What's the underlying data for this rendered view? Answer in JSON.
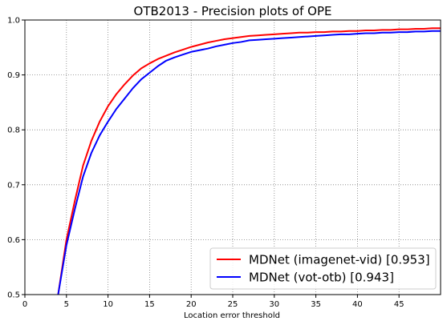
{
  "chart_data": {
    "type": "line",
    "title": "OTB2013 - Precision plots of OPE",
    "xlabel": "Location error threshold",
    "ylabel": "",
    "xlim": [
      0,
      50
    ],
    "ylim": [
      0.5,
      1.0
    ],
    "xticks": [
      "0",
      "5",
      "10",
      "15",
      "20",
      "25",
      "30",
      "35",
      "40",
      "45"
    ],
    "yticks": [
      "0.5",
      "0.6",
      "0.7",
      "0.8",
      "0.9",
      "1.0"
    ],
    "grid": true,
    "legend_position": "lower-right",
    "series": [
      {
        "name": "MDNet (imagenet-vid) [0.953]",
        "color": "#ff0000",
        "x": [
          4,
          5,
          6,
          7,
          8,
          9,
          10,
          11,
          12,
          13,
          14,
          15,
          16,
          17,
          18,
          19,
          20,
          21,
          22,
          23,
          24,
          25,
          26,
          27,
          28,
          29,
          30,
          31,
          32,
          33,
          34,
          35,
          36,
          37,
          38,
          39,
          40,
          41,
          42,
          43,
          44,
          45,
          46,
          47,
          48,
          49,
          50
        ],
        "y": [
          0.5,
          0.6,
          0.67,
          0.735,
          0.78,
          0.815,
          0.843,
          0.865,
          0.883,
          0.899,
          0.912,
          0.921,
          0.929,
          0.935,
          0.941,
          0.946,
          0.951,
          0.955,
          0.959,
          0.962,
          0.965,
          0.967,
          0.969,
          0.971,
          0.972,
          0.973,
          0.974,
          0.975,
          0.976,
          0.977,
          0.977,
          0.978,
          0.978,
          0.979,
          0.979,
          0.98,
          0.98,
          0.981,
          0.981,
          0.982,
          0.982,
          0.983,
          0.983,
          0.984,
          0.984,
          0.985,
          0.985
        ]
      },
      {
        "name": "MDNet (vot-otb) [0.943]",
        "color": "#0000ff",
        "x": [
          4,
          5,
          6,
          7,
          8,
          9,
          10,
          11,
          12,
          13,
          14,
          15,
          16,
          17,
          18,
          19,
          20,
          21,
          22,
          23,
          24,
          25,
          26,
          27,
          28,
          29,
          30,
          31,
          32,
          33,
          34,
          35,
          36,
          37,
          38,
          39,
          40,
          41,
          42,
          43,
          44,
          45,
          46,
          47,
          48,
          49,
          50
        ],
        "y": [
          0.5,
          0.59,
          0.655,
          0.715,
          0.758,
          0.79,
          0.815,
          0.838,
          0.857,
          0.876,
          0.892,
          0.904,
          0.916,
          0.926,
          0.932,
          0.937,
          0.942,
          0.945,
          0.948,
          0.952,
          0.955,
          0.958,
          0.96,
          0.963,
          0.964,
          0.965,
          0.966,
          0.967,
          0.968,
          0.969,
          0.97,
          0.971,
          0.972,
          0.973,
          0.974,
          0.974,
          0.975,
          0.976,
          0.976,
          0.977,
          0.977,
          0.978,
          0.978,
          0.979,
          0.979,
          0.98,
          0.98
        ]
      }
    ]
  }
}
